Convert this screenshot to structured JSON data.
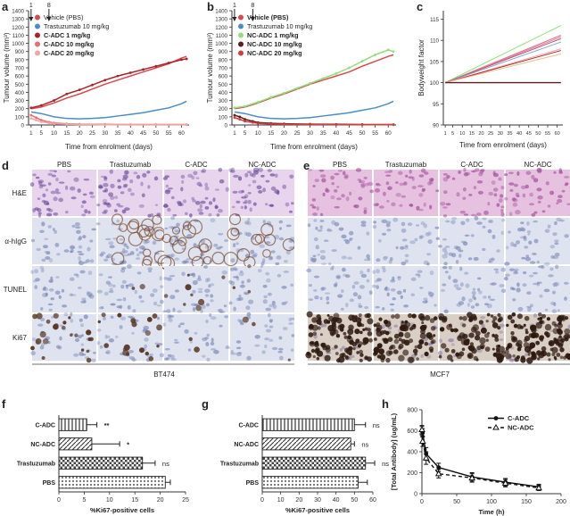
{
  "panel_labels": [
    "a",
    "b",
    "c",
    "d",
    "e",
    "f",
    "g",
    "h"
  ],
  "colors": {
    "vehicle": "#d94a4a",
    "trastuzumab": "#4a8ec4",
    "cadc1": "#a8242a",
    "cadc10": "#e86e6e",
    "cadc20": "#f1a6a6",
    "ncadc1": "#8fe07a",
    "ncadc10": "#5a1f1f",
    "ncadc20": "#d63c3c",
    "he_bg": "#e9d4ee",
    "ihc_bg": "#dfe3ef",
    "ki67_brown": "#5a3a26",
    "mcf7_he": "#e7c2e0"
  },
  "dosing_arrows": [
    "1",
    "8"
  ],
  "chart_data": [
    {
      "panel": "a",
      "type": "line",
      "xlabel": "Time from enrolment (days)",
      "ylabel": "Tumour volume (mm³)",
      "xticks": [
        1,
        5,
        10,
        15,
        20,
        25,
        30,
        35,
        40,
        45,
        50,
        55,
        60
      ],
      "yticks": [
        0,
        100,
        200,
        300,
        400,
        500,
        600,
        700,
        800,
        900,
        1000,
        1100,
        1200,
        1300,
        1400
      ],
      "xlim": [
        0,
        63
      ],
      "ylim": [
        0,
        1400
      ],
      "legend": [
        {
          "name": "Vehicle (PBS)",
          "bold": false
        },
        {
          "name": "Trastuzumab 10 mg/kg",
          "bold": false
        },
        {
          "name": "C-ADC 1 mg/kg",
          "bold": true
        },
        {
          "name": "C-ADC 10 mg/kg",
          "bold": true
        },
        {
          "name": "C-ADC 20 mg/kg",
          "bold": true
        }
      ],
      "series": [
        {
          "name": "Vehicle (PBS)",
          "x": [
            1,
            5,
            10,
            15,
            20,
            25,
            30,
            35,
            40,
            45,
            50,
            55,
            60,
            62
          ],
          "y": [
            200,
            220,
            270,
            330,
            380,
            440,
            500,
            550,
            600,
            650,
            700,
            750,
            820,
            840
          ]
        },
        {
          "name": "Trastuzumab 10 mg/kg",
          "x": [
            1,
            5,
            10,
            15,
            20,
            25,
            30,
            35,
            40,
            45,
            50,
            55,
            60,
            62
          ],
          "y": [
            160,
            140,
            100,
            80,
            75,
            80,
            90,
            110,
            130,
            150,
            180,
            210,
            260,
            290
          ]
        },
        {
          "name": "C-ADC 1 mg/kg",
          "x": [
            1,
            5,
            10,
            15,
            20,
            25,
            30,
            35,
            40,
            45,
            50,
            55,
            60,
            62
          ],
          "y": [
            210,
            240,
            300,
            380,
            430,
            490,
            550,
            600,
            640,
            680,
            720,
            760,
            800,
            810
          ]
        },
        {
          "name": "C-ADC 10 mg/kg",
          "x": [
            1,
            3,
            5,
            8,
            10,
            15,
            20,
            30,
            40,
            50,
            62
          ],
          "y": [
            120,
            90,
            60,
            35,
            25,
            15,
            10,
            8,
            5,
            5,
            5
          ]
        },
        {
          "name": "C-ADC 20 mg/kg",
          "x": [
            1,
            3,
            5,
            8,
            10,
            15,
            20,
            30,
            40,
            50,
            62
          ],
          "y": [
            80,
            60,
            40,
            25,
            15,
            10,
            5,
            3,
            2,
            2,
            2
          ]
        }
      ]
    },
    {
      "panel": "b",
      "type": "line",
      "xlabel": "Time from enrolment (days)",
      "ylabel": "Tumour volume (mm³)",
      "xticks": [
        1,
        5,
        10,
        15,
        20,
        25,
        30,
        35,
        40,
        45,
        50,
        55,
        60
      ],
      "yticks": [
        0,
        100,
        200,
        300,
        400,
        500,
        600,
        700,
        800,
        900,
        1000,
        1100,
        1200,
        1300,
        1400
      ],
      "xlim": [
        0,
        63
      ],
      "ylim": [
        0,
        1400
      ],
      "legend": [
        {
          "name": "Vehicle (PBS)",
          "bold": true
        },
        {
          "name": "Trastuzumab 10 mg/kg",
          "bold": false
        },
        {
          "name": "NC-ADC 1 mg/kg",
          "bold": true
        },
        {
          "name": "NC-ADC 10 mg/kg",
          "bold": true
        },
        {
          "name": "NC-ADC 20 mg/kg",
          "bold": true
        }
      ],
      "series": [
        {
          "name": "Vehicle (PBS)",
          "x": [
            1,
            5,
            10,
            15,
            20,
            25,
            30,
            35,
            40,
            45,
            50,
            55,
            60,
            62
          ],
          "y": [
            200,
            220,
            270,
            330,
            380,
            440,
            500,
            550,
            600,
            650,
            720,
            780,
            840,
            860
          ]
        },
        {
          "name": "Trastuzumab 10 mg/kg",
          "x": [
            1,
            5,
            10,
            15,
            20,
            25,
            30,
            35,
            40,
            45,
            50,
            55,
            60,
            62
          ],
          "y": [
            160,
            140,
            100,
            80,
            75,
            80,
            90,
            110,
            130,
            150,
            180,
            210,
            260,
            290
          ]
        },
        {
          "name": "NC-ADC 1 mg/kg",
          "x": [
            1,
            5,
            10,
            15,
            20,
            25,
            30,
            35,
            40,
            45,
            50,
            55,
            60,
            62
          ],
          "y": [
            210,
            230,
            280,
            340,
            390,
            450,
            510,
            570,
            630,
            700,
            780,
            860,
            920,
            900
          ]
        },
        {
          "name": "NC-ADC 10 mg/kg",
          "x": [
            1,
            3,
            5,
            8,
            10,
            15,
            20,
            30,
            40,
            50,
            62
          ],
          "y": [
            120,
            100,
            70,
            45,
            30,
            20,
            15,
            10,
            8,
            6,
            5
          ]
        },
        {
          "name": "NC-ADC 20 mg/kg",
          "x": [
            1,
            3,
            5,
            8,
            10,
            15,
            20,
            30,
            40,
            50,
            62
          ],
          "y": [
            90,
            70,
            45,
            30,
            20,
            12,
            8,
            5,
            4,
            3,
            3
          ]
        }
      ]
    },
    {
      "panel": "c",
      "type": "line",
      "xlabel": "Time from enrolment (days)",
      "ylabel": "Bodyweight factor",
      "xticks": [
        1,
        5,
        10,
        15,
        20,
        25,
        30,
        35,
        40,
        45,
        50,
        55,
        60
      ],
      "yticks": [
        90,
        95,
        100,
        105,
        110,
        115
      ],
      "xlim": [
        0,
        63
      ],
      "ylim": [
        90,
        117
      ],
      "reference_line": 100,
      "series": [
        {
          "name": "s1",
          "end": 113.5
        },
        {
          "name": "s2",
          "end": 111.2
        },
        {
          "name": "s3",
          "end": 110.8
        },
        {
          "name": "s4",
          "end": 110.4
        },
        {
          "name": "s5",
          "end": 109.6
        },
        {
          "name": "s6",
          "end": 108.0
        },
        {
          "name": "s7",
          "end": 107.6
        },
        {
          "name": "s8",
          "end": 106.8
        }
      ]
    },
    {
      "panel": "f",
      "type": "bar",
      "orientation": "horizontal",
      "categories": [
        "C-ADC",
        "NC-ADC",
        "Trastuzumab",
        "PBS"
      ],
      "values": [
        5.5,
        6.5,
        16.5,
        21
      ],
      "errors": [
        2,
        5.5,
        2.5,
        1
      ],
      "annotations": [
        "**",
        "*",
        "ns",
        ""
      ],
      "xlabel": "%Ki67-positive cells",
      "xticks": [
        0,
        5,
        10,
        15,
        20,
        25
      ],
      "xlim": [
        0,
        25
      ]
    },
    {
      "panel": "g",
      "type": "bar",
      "orientation": "horizontal",
      "categories": [
        "C-ADC",
        "NC-ADC",
        "Trastuzumab",
        "PBS"
      ],
      "values": [
        50,
        48,
        56,
        52
      ],
      "errors": [
        6,
        2,
        5,
        5
      ],
      "annotations": [
        "ns",
        "ns",
        "ns",
        ""
      ],
      "xlabel": "%Ki67-positive cells",
      "xticks": [
        0,
        10,
        20,
        30,
        40,
        50,
        60
      ],
      "xlim": [
        0,
        60
      ]
    },
    {
      "panel": "h",
      "type": "line",
      "xlabel": "Time (h)",
      "ylabel": "[Total Antibody] (ug/mL)",
      "xticks": [
        0,
        50,
        100,
        150,
        200
      ],
      "yticks": [
        0,
        200,
        400,
        600,
        800
      ],
      "xlim": [
        0,
        200
      ],
      "ylim": [
        0,
        800
      ],
      "legend": [
        {
          "name": "C-ADC"
        },
        {
          "name": "NC-ADC"
        }
      ],
      "series": [
        {
          "name": "C-ADC",
          "x": [
            0,
            1,
            6,
            24,
            72,
            120,
            168
          ],
          "y": [
            600,
            580,
            380,
            250,
            160,
            110,
            65
          ],
          "err": [
            40,
            40,
            60,
            40,
            40,
            35,
            25
          ]
        },
        {
          "name": "NC-ADC",
          "x": [
            0,
            1,
            6,
            24,
            72,
            120,
            168
          ],
          "y": [
            610,
            500,
            340,
            190,
            150,
            100,
            55
          ],
          "err": [
            40,
            50,
            60,
            40,
            40,
            35,
            25
          ]
        }
      ]
    }
  ],
  "histology_d": {
    "columns": [
      "PBS",
      "Trastuzumab",
      "C-ADC",
      "NC-ADC"
    ],
    "rows": [
      "H&E",
      "α-hIgG",
      "TUNEL",
      "Ki67"
    ],
    "cell_line": "BT474"
  },
  "histology_e": {
    "columns": [
      "PBS",
      "Trastuzumab",
      "C-ADC",
      "NC-ADC"
    ],
    "cell_line": "MCF7"
  }
}
